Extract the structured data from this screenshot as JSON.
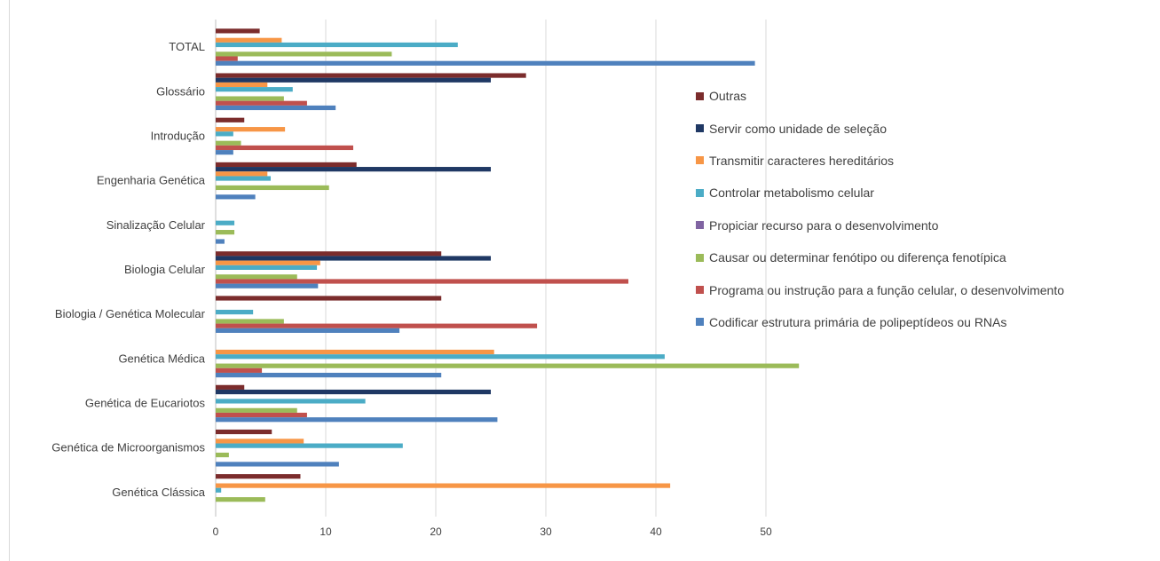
{
  "chart_data": {
    "type": "bar",
    "orientation": "horizontal",
    "title": "",
    "xlabel": "",
    "ylabel": "",
    "xlim": [
      0,
      55
    ],
    "xticks": [
      0,
      10,
      20,
      30,
      40,
      50
    ],
    "grid": true,
    "legend_position": "right",
    "categories": [
      "TOTAL",
      "Glossário",
      "Introdução",
      "Engenharia Genética",
      "Sinalização Celular",
      "Biologia Celular",
      "Biologia / Genética Molecular",
      "Genética Médica",
      "Genética de Eucariotos",
      "Genética de Microorganismos",
      "Genética Clássica"
    ],
    "series": [
      {
        "name": "Outras",
        "color": "#7b2c2c",
        "values": [
          4,
          28.2,
          2.6,
          12.8,
          0,
          20.5,
          20.5,
          0,
          2.6,
          5.1,
          7.7
        ]
      },
      {
        "name": "Servir como unidade de seleção",
        "color": "#1f3864",
        "values": [
          0,
          25,
          0,
          25,
          0,
          25,
          0,
          0,
          25,
          0,
          0
        ]
      },
      {
        "name": "Transmitir caracteres hereditários",
        "color": "#f79646",
        "values": [
          6,
          4.7,
          6.3,
          4.7,
          0,
          9.5,
          0,
          25.3,
          0,
          8,
          41.3
        ]
      },
      {
        "name": "Controlar metabolismo celular",
        "color": "#4bacc6",
        "values": [
          22,
          7,
          1.6,
          5,
          1.7,
          9.2,
          3.4,
          40.8,
          13.6,
          17,
          0.5
        ]
      },
      {
        "name": "Propiciar recurso para o desenvolvimento",
        "color": "#8064a2",
        "values": [
          0,
          0,
          0,
          0,
          0,
          0,
          0,
          0,
          0,
          0,
          0
        ]
      },
      {
        "name": "Causar ou determinar fenótipo ou diferença fenotípica",
        "color": "#9bbb59",
        "values": [
          16,
          6.2,
          2.3,
          10.3,
          1.7,
          7.4,
          6.2,
          53,
          7.4,
          1.2,
          4.5
        ]
      },
      {
        "name": "Programa ou instrução para a função celular, o desenvolvimento",
        "color": "#c0504d",
        "values": [
          2,
          8.3,
          12.5,
          0,
          0,
          37.5,
          29.2,
          4.2,
          8.3,
          0,
          0
        ]
      },
      {
        "name": "Codificar estrutura primária de polipeptídeos ou RNAs",
        "color": "#4f81bd",
        "values": [
          49,
          10.9,
          1.6,
          3.6,
          0.8,
          9.3,
          16.7,
          20.5,
          25.6,
          11.2,
          0
        ]
      }
    ]
  }
}
